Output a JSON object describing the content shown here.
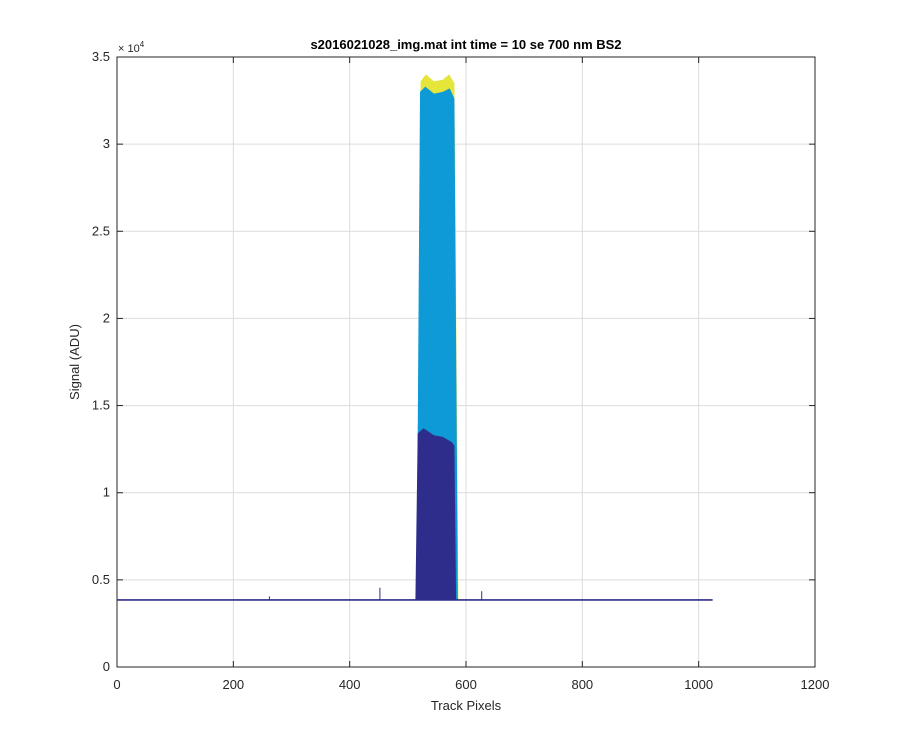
{
  "chart_data": {
    "type": "area",
    "title": "s2016021028_img.mat int time = 10 se  700 nm BS2",
    "xlabel": "Track Pixels",
    "ylabel": "Signal (ADU)",
    "xlim": [
      0,
      1200
    ],
    "ylim": [
      0,
      35000
    ],
    "x_ticks": [
      0,
      200,
      400,
      600,
      800,
      1000,
      1200
    ],
    "x_tick_labels": [
      "0",
      "200",
      "400",
      "600",
      "800",
      "1000",
      "1200"
    ],
    "y_ticks": [
      0,
      5000,
      10000,
      15000,
      20000,
      25000,
      30000,
      35000
    ],
    "y_tick_labels": [
      "0",
      "0.5",
      "1",
      "1.5",
      "2",
      "2.5",
      "3",
      "3.5"
    ],
    "y_exponent_label": "× 10",
    "y_exponent_power": "4",
    "grid": true,
    "baseline": {
      "x_range": [
        1,
        1024
      ],
      "level": 3850
    },
    "spikes": [
      {
        "x": 452,
        "y": 4550
      },
      {
        "x": 262,
        "y": 4050
      },
      {
        "x": 627,
        "y": 4350
      }
    ],
    "layers": [
      {
        "color": "#E6E63A",
        "points": [
          [
            515,
            3850
          ],
          [
            522,
            33600
          ],
          [
            531,
            34000
          ],
          [
            545,
            33600
          ],
          [
            560,
            33700
          ],
          [
            571,
            34000
          ],
          [
            580,
            33500
          ],
          [
            587,
            3850
          ]
        ]
      },
      {
        "color": "#0D9AD6",
        "points": [
          [
            515,
            3850
          ],
          [
            521,
            33000
          ],
          [
            530,
            33300
          ],
          [
            545,
            32900
          ],
          [
            560,
            33000
          ],
          [
            572,
            33200
          ],
          [
            580,
            32600
          ],
          [
            586,
            3850
          ]
        ]
      },
      {
        "color": "#2E2D8C",
        "points": [
          [
            513,
            3850
          ],
          [
            517,
            13400
          ],
          [
            527,
            13700
          ],
          [
            545,
            13300
          ],
          [
            560,
            13200
          ],
          [
            576,
            12900
          ],
          [
            580,
            12700
          ],
          [
            583,
            3850
          ]
        ]
      }
    ]
  }
}
